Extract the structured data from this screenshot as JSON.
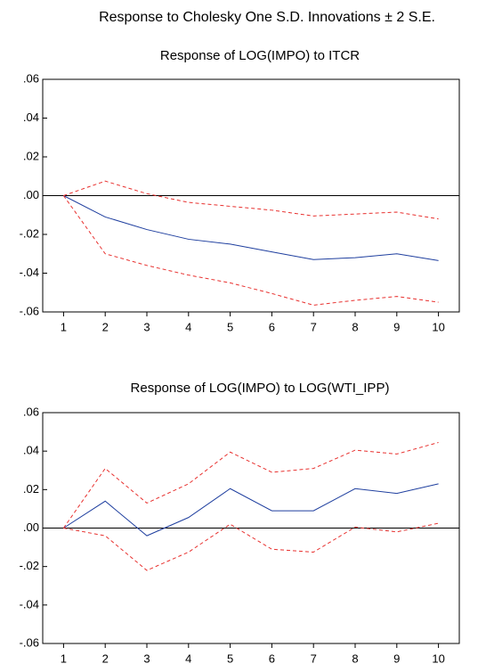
{
  "title": "Response to Cholesky One S.D. Innovations ± 2 S.E.",
  "chart_data": [
    {
      "type": "line",
      "title": "Response of LOG(IMPO) to ITCR",
      "x": [
        1,
        2,
        3,
        4,
        5,
        6,
        7,
        8,
        9,
        10
      ],
      "xlim": [
        0.5,
        10.5
      ],
      "xticks": [
        1,
        2,
        3,
        4,
        5,
        6,
        7,
        8,
        9,
        10
      ],
      "ylim": [
        -0.06,
        0.06
      ],
      "yticks": [
        {
          "value": -0.06,
          "label": "-.06"
        },
        {
          "value": -0.04,
          "label": "-.04"
        },
        {
          "value": -0.02,
          "label": "-.02"
        },
        {
          "value": 0,
          "label": ".00"
        },
        {
          "value": 0.02,
          "label": ".02"
        },
        {
          "value": 0.04,
          "label": ".04"
        },
        {
          "value": 0.06,
          "label": ".06"
        }
      ],
      "series": [
        {
          "color": "#1f3f9f",
          "dashed": false,
          "values": [
            0,
            -0.011,
            -0.0175,
            -0.0225,
            -0.025,
            -0.029,
            -0.033,
            -0.032,
            -0.03,
            -0.0335
          ]
        },
        {
          "color": "#e8312f",
          "dashed": true,
          "values": [
            0,
            0.0075,
            0.001,
            -0.0035,
            -0.0055,
            -0.0075,
            -0.0105,
            -0.0095,
            -0.0085,
            -0.012
          ]
        },
        {
          "color": "#e8312f",
          "dashed": true,
          "values": [
            0,
            -0.03,
            -0.036,
            -0.041,
            -0.045,
            -0.0505,
            -0.0565,
            -0.054,
            -0.052,
            -0.055
          ]
        }
      ]
    },
    {
      "type": "line",
      "title": "Response of LOG(IMPO) to LOG(WTI_IPP)",
      "x": [
        1,
        2,
        3,
        4,
        5,
        6,
        7,
        8,
        9,
        10
      ],
      "xlim": [
        0.5,
        10.5
      ],
      "xticks": [
        1,
        2,
        3,
        4,
        5,
        6,
        7,
        8,
        9,
        10
      ],
      "ylim": [
        -0.06,
        0.06
      ],
      "yticks": [
        {
          "value": -0.06,
          "label": "-.06"
        },
        {
          "value": -0.04,
          "label": "-.04"
        },
        {
          "value": -0.02,
          "label": "-.02"
        },
        {
          "value": 0,
          "label": ".00"
        },
        {
          "value": 0.02,
          "label": ".02"
        },
        {
          "value": 0.04,
          "label": ".04"
        },
        {
          "value": 0.06,
          "label": ".06"
        }
      ],
      "series": [
        {
          "color": "#1f3f9f",
          "dashed": false,
          "values": [
            0,
            0.014,
            -0.004,
            0.0055,
            0.0205,
            0.009,
            0.009,
            0.0205,
            0.018,
            0.023
          ]
        },
        {
          "color": "#e8312f",
          "dashed": true,
          "values": [
            0,
            0.031,
            0.013,
            0.023,
            0.0395,
            0.029,
            0.031,
            0.0405,
            0.0385,
            0.0445
          ]
        },
        {
          "color": "#e8312f",
          "dashed": true,
          "values": [
            0,
            -0.004,
            -0.022,
            -0.0125,
            0.002,
            -0.011,
            -0.0125,
            0.0005,
            -0.002,
            0.0025
          ]
        }
      ]
    }
  ]
}
